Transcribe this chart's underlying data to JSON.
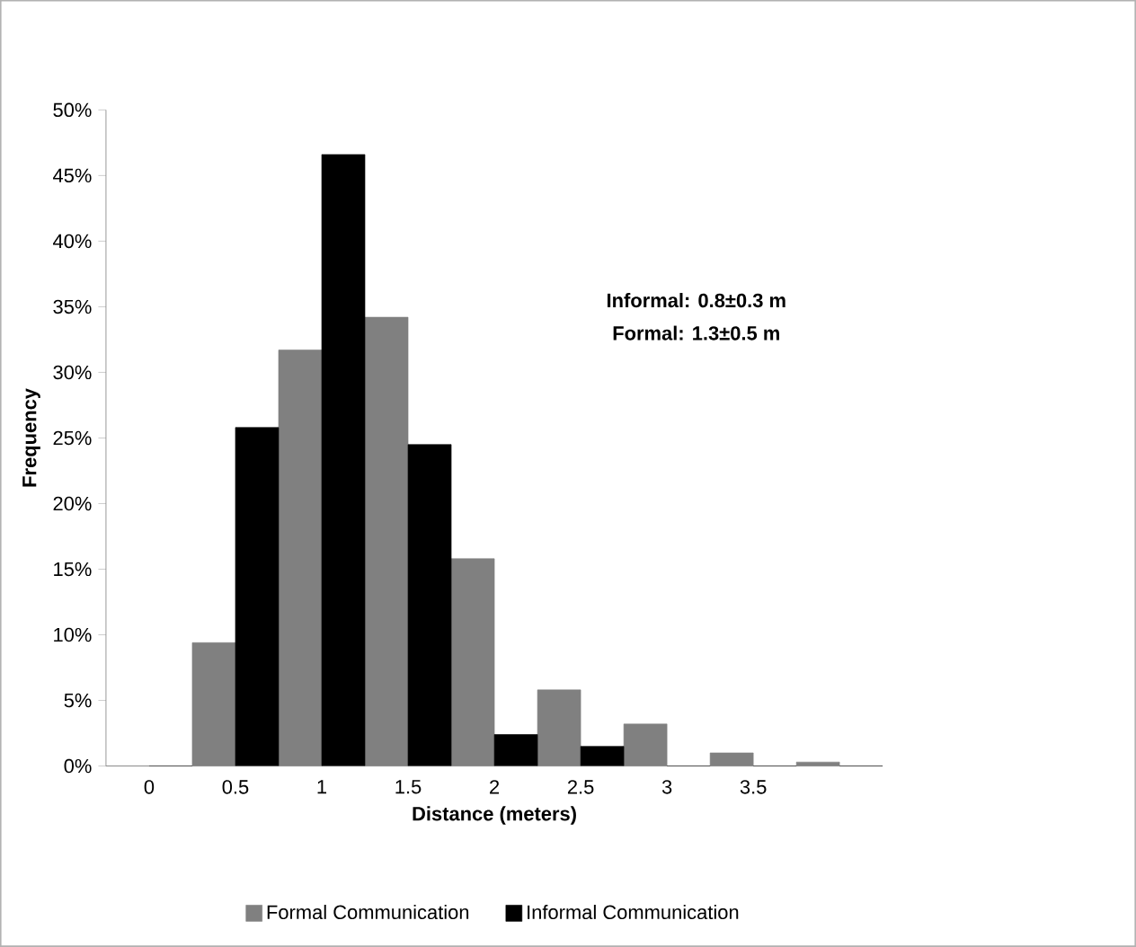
{
  "chart_data": {
    "type": "bar",
    "xlabel": "Distance (meters)",
    "ylabel": "Frequency",
    "categories": [
      "0",
      "0.5",
      "1",
      "1.5",
      "2",
      "2.5",
      "3",
      "3.5",
      null
    ],
    "series": [
      {
        "name": "Formal Communication",
        "color": "#808080",
        "values": [
          0,
          9.4,
          31.7,
          34.2,
          15.8,
          5.8,
          3.2,
          1.0,
          0.3
        ]
      },
      {
        "name": "Informal Communication",
        "color": "#000000",
        "values": [
          0,
          25.8,
          46.6,
          24.5,
          2.4,
          1.5,
          0,
          0,
          0
        ]
      }
    ],
    "ylim": [
      0,
      50
    ],
    "yticks": [
      {
        "value": 0,
        "label": "0%"
      },
      {
        "value": 5,
        "label": "5%"
      },
      {
        "value": 10,
        "label": "10%"
      },
      {
        "value": 15,
        "label": "15%"
      },
      {
        "value": 20,
        "label": "20%"
      },
      {
        "value": 25,
        "label": "25%"
      },
      {
        "value": 30,
        "label": "30%"
      },
      {
        "value": 35,
        "label": "35%"
      },
      {
        "value": 40,
        "label": "40%"
      },
      {
        "value": 45,
        "label": "45%"
      },
      {
        "value": 50,
        "label": "50%"
      }
    ],
    "annotations": [
      "Informal: 0.8±0.3 m",
      "Formal: 1.3±0.5 m"
    ],
    "legend": "bottom",
    "grid": false
  }
}
